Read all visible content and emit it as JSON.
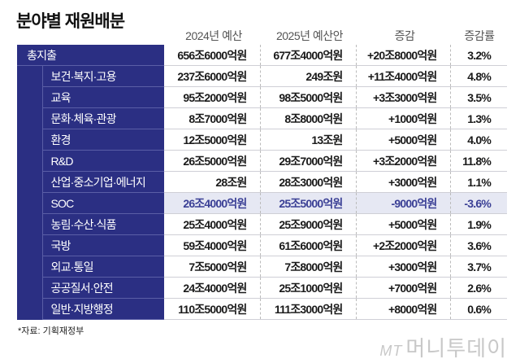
{
  "title": "분야별 재원배분",
  "headers": [
    "2024년 예산",
    "2025년 예산안",
    "증감",
    "증감률"
  ],
  "colors": {
    "label_bg": "#2b2f83",
    "highlight_bg": "#e6e8f3",
    "highlight_text": "#3a3f95"
  },
  "total": {
    "label": "총지출",
    "y2024": "656조6000억원",
    "y2025": "677조4000억원",
    "change": "+20조8000억원",
    "rate": "3.2%"
  },
  "rows": [
    {
      "label": "보건·복지·고용",
      "y2024": "237조6000억원",
      "y2025": "249조원",
      "change": "+11조4000억원",
      "rate": "4.8%"
    },
    {
      "label": "교육",
      "y2024": "95조2000억원",
      "y2025": "98조5000억원",
      "change": "+3조3000억원",
      "rate": "3.5%"
    },
    {
      "label": "문화·체육·관광",
      "y2024": "8조7000억원",
      "y2025": "8조8000억원",
      "change": "+1000억원",
      "rate": "1.3%"
    },
    {
      "label": "환경",
      "y2024": "12조5000억원",
      "y2025": "13조원",
      "change": "+5000억원",
      "rate": "4.0%"
    },
    {
      "label": "R&D",
      "y2024": "26조5000억원",
      "y2025": "29조7000억원",
      "change": "+3조2000억원",
      "rate": "11.8%"
    },
    {
      "label": "산업·중소기업·에너지",
      "y2024": "28조원",
      "y2025": "28조3000억원",
      "change": "+3000억원",
      "rate": "1.1%"
    },
    {
      "label": "SOC",
      "y2024": "26조4000억원",
      "y2025": "25조5000억원",
      "change": "-9000억원",
      "rate": "-3.6%",
      "highlight": true
    },
    {
      "label": "농림·수산·식품",
      "y2024": "25조4000억원",
      "y2025": "25조9000억원",
      "change": "+5000억원",
      "rate": "1.9%"
    },
    {
      "label": "국방",
      "y2024": "59조4000억원",
      "y2025": "61조6000억원",
      "change": "+2조2000억원",
      "rate": "3.6%"
    },
    {
      "label": "외교·통일",
      "y2024": "7조5000억원",
      "y2025": "7조8000억원",
      "change": "+3000억원",
      "rate": "3.7%"
    },
    {
      "label": "공공질서·안전",
      "y2024": "24조4000억원",
      "y2025": "25조1000억원",
      "change": "+7000억원",
      "rate": "2.6%"
    },
    {
      "label": "일반·지방행정",
      "y2024": "110조5000억원",
      "y2025": "111조3000억원",
      "change": "+8000억원",
      "rate": "0.6%"
    }
  ],
  "source": "*자료: 기획재정부",
  "logo": {
    "mark": "MT",
    "name": "머니투데이"
  }
}
